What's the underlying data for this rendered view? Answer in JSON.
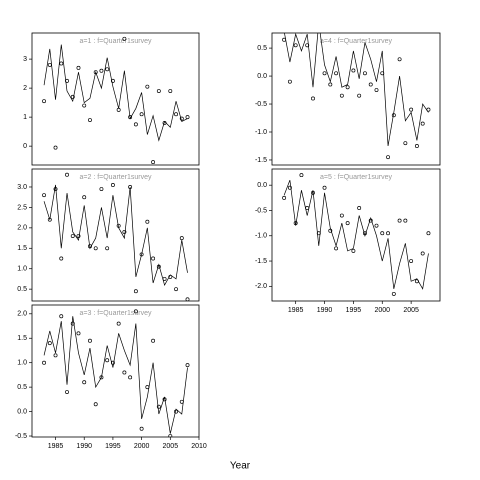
{
  "chart_data": [
    {
      "type": "line",
      "title": "a=1  :  f=Quarter1survey",
      "xlabel": "Year",
      "x": [
        1983,
        1984,
        1985,
        1986,
        1987,
        1988,
        1989,
        1990,
        1991,
        1992,
        1993,
        1994,
        1995,
        1996,
        1997,
        1998,
        1999,
        2000,
        2001,
        2002,
        2003,
        2004,
        2005,
        2006,
        2007,
        2008
      ],
      "xlim": [
        1980.9,
        2010
      ],
      "ylim": [
        -0.65,
        3.9
      ],
      "yticks": [
        0,
        1,
        2,
        3
      ],
      "series": [
        {
          "draw": "points",
          "color": "#000000",
          "values": [
            1.55,
            2.8,
            -0.05,
            2.85,
            2.25,
            1.7,
            2.7,
            1.4,
            0.9,
            2.55,
            2.6,
            2.65,
            2.25,
            1.25,
            3.7,
            1.0,
            0.75,
            1.1,
            2.05,
            -0.55,
            1.9,
            0.8,
            1.9,
            1.1,
            0.95,
            1.0
          ]
        },
        {
          "draw": "line",
          "color": "#000000",
          "values": [
            2.1,
            3.35,
            1.6,
            3.5,
            1.9,
            1.55,
            2.55,
            1.5,
            1.65,
            2.55,
            2.0,
            3.05,
            2.05,
            1.3,
            2.6,
            0.95,
            1.3,
            1.85,
            0.4,
            1.05,
            0.2,
            0.85,
            0.65,
            1.55,
            0.85,
            0.95
          ]
        }
      ]
    },
    {
      "type": "line",
      "title": "a=2  :  f=Quarter1survey",
      "x": [
        1983,
        1984,
        1985,
        1986,
        1987,
        1988,
        1989,
        1990,
        1991,
        1992,
        1993,
        1994,
        1995,
        1996,
        1997,
        1998,
        1999,
        2000,
        2001,
        2002,
        2003,
        2004,
        2005,
        2006,
        2007,
        2008
      ],
      "xlim": [
        1980.9,
        2010
      ],
      "ylim": [
        0.21,
        3.44
      ],
      "yticks": [
        0.5,
        {
          "value": 1,
          "label": "1.0"
        },
        1.5,
        {
          "value": 2,
          "label": "2.0"
        },
        2.5,
        {
          "value": 3,
          "label": "3.0"
        }
      ],
      "series": [
        {
          "draw": "points",
          "color": "#000000",
          "values": [
            2.8,
            2.2,
            2.95,
            1.25,
            3.3,
            1.8,
            1.8,
            2.75,
            1.55,
            1.5,
            2.95,
            1.5,
            3.05,
            2.05,
            1.9,
            3.0,
            0.45,
            1.35,
            2.15,
            1.25,
            1.05,
            0.75,
            0.8,
            0.5,
            1.75,
            0.25
          ]
        },
        {
          "draw": "line",
          "color": "#000000",
          "values": [
            2.65,
            2.2,
            3.05,
            1.5,
            2.85,
            1.9,
            1.7,
            2.55,
            1.5,
            1.75,
            2.5,
            1.75,
            2.8,
            2.0,
            1.75,
            3.0,
            0.8,
            1.35,
            2.0,
            0.65,
            1.1,
            0.6,
            0.85,
            0.75,
            1.7,
            0.9
          ]
        }
      ]
    },
    {
      "type": "line",
      "title": "a=3  :  f=Quarter1survey",
      "x": [
        1983,
        1984,
        1985,
        1986,
        1987,
        1988,
        1989,
        1990,
        1991,
        1992,
        1993,
        1994,
        1995,
        1996,
        1997,
        1998,
        1999,
        2000,
        2001,
        2002,
        2003,
        2004,
        2005,
        2006,
        2007,
        2008
      ],
      "xlim": [
        1980.9,
        2010
      ],
      "ylim": [
        -0.52,
        2.18
      ],
      "xticks": [
        1985,
        1990,
        1995,
        2000,
        2005,
        2010
      ],
      "yticks": [
        -0.5,
        {
          "value": 0,
          "label": "0.0"
        },
        0.5,
        {
          "value": 1,
          "label": "1.0"
        },
        1.5,
        {
          "value": 2,
          "label": "2.0"
        }
      ],
      "series": [
        {
          "draw": "points",
          "color": "#000000",
          "values": [
            1.0,
            1.4,
            1.15,
            1.95,
            0.4,
            1.8,
            1.6,
            0.6,
            1.45,
            0.15,
            0.7,
            1.05,
            1.0,
            1.8,
            0.8,
            0.7,
            2.05,
            -0.35,
            0.5,
            1.45,
            0.1,
            0.25,
            -0.5,
            0.0,
            0.2,
            0.95
          ]
        },
        {
          "draw": "line",
          "color": "#000000",
          "values": [
            1.15,
            1.65,
            1.2,
            1.85,
            0.55,
            1.95,
            1.2,
            0.75,
            1.3,
            0.5,
            0.7,
            1.35,
            0.9,
            1.6,
            1.25,
            0.95,
            1.8,
            -0.15,
            0.3,
            1.0,
            -0.05,
            0.3,
            -0.45,
            0.05,
            -0.05,
            0.9
          ]
        }
      ]
    },
    {
      "type": "line",
      "title": "a=4  :  f=Quarter1survey",
      "x": [
        1983,
        1984,
        1985,
        1986,
        1987,
        1988,
        1989,
        1990,
        1991,
        1992,
        1993,
        1994,
        1995,
        1996,
        1997,
        1998,
        1999,
        2000,
        2001,
        2002,
        2003,
        2004,
        2005,
        2006,
        2007,
        2008
      ],
      "xlim": [
        1980.9,
        2010
      ],
      "ylim": [
        -1.59,
        0.77
      ],
      "yticks": [
        -1.5,
        {
          "value": -1,
          "label": "-1.0"
        },
        -0.5,
        {
          "value": 0,
          "label": "0.0"
        },
        0.5
      ],
      "series": [
        {
          "draw": "points",
          "color": "#000000",
          "values": [
            0.65,
            -0.1,
            0.55,
            0.8,
            0.55,
            -0.4,
            0.85,
            0.05,
            -0.15,
            0.05,
            -0.35,
            -0.2,
            0.1,
            -0.35,
            0.05,
            -0.15,
            -0.25,
            0.05,
            -1.45,
            -0.7,
            0.3,
            -1.2,
            -0.6,
            -1.25,
            -0.85,
            -0.6
          ]
        },
        {
          "draw": "line",
          "color": "#000000",
          "values": [
            0.8,
            0.25,
            0.75,
            0.45,
            0.75,
            -0.2,
            0.95,
            0.2,
            -0.1,
            0.35,
            -0.2,
            -0.15,
            0.45,
            -0.05,
            0.6,
            0.3,
            -0.1,
            0.45,
            -1.25,
            -0.65,
            0.0,
            -0.8,
            -0.65,
            -1.15,
            -0.5,
            -0.65
          ]
        }
      ]
    },
    {
      "type": "line",
      "title": "a=5  :  f=Quarter1survey",
      "x": [
        1983,
        1984,
        1985,
        1986,
        1987,
        1988,
        1989,
        1990,
        1991,
        1992,
        1993,
        1994,
        1995,
        1996,
        1997,
        1998,
        1999,
        2000,
        2001,
        2002,
        2003,
        2004,
        2005,
        2006,
        2007,
        2008
      ],
      "xlim": [
        1980.9,
        2010
      ],
      "ylim": [
        -2.29,
        0.32
      ],
      "xticks": [
        1985,
        1990,
        1995,
        2000,
        2005
      ],
      "yticks": [
        {
          "value": -2,
          "label": "-2.0"
        },
        -1.5,
        {
          "value": -1,
          "label": "-1.0"
        },
        -0.5,
        {
          "value": 0,
          "label": "0.0"
        }
      ],
      "series": [
        {
          "draw": "points",
          "color": "#000000",
          "values": [
            -0.25,
            -0.05,
            -0.75,
            0.2,
            -0.45,
            -0.15,
            -0.95,
            -0.05,
            -0.9,
            -1.25,
            -0.6,
            -0.75,
            -1.3,
            -0.45,
            -0.95,
            -0.7,
            -0.8,
            -0.95,
            -0.95,
            -2.15,
            -0.7,
            -0.7,
            -1.5,
            -1.9,
            -1.35,
            -0.95
          ]
        },
        {
          "draw": "line",
          "color": "#000000",
          "values": [
            -0.2,
            0.1,
            -0.8,
            -0.1,
            -0.6,
            -0.1,
            -1.2,
            -0.15,
            -0.85,
            -1.2,
            -0.75,
            -1.3,
            -1.25,
            -0.6,
            -1.0,
            -0.65,
            -1.0,
            -1.5,
            -1.05,
            -2.05,
            -1.55,
            -1.15,
            -1.9,
            -1.85,
            -2.05,
            -1.35
          ]
        }
      ]
    }
  ]
}
